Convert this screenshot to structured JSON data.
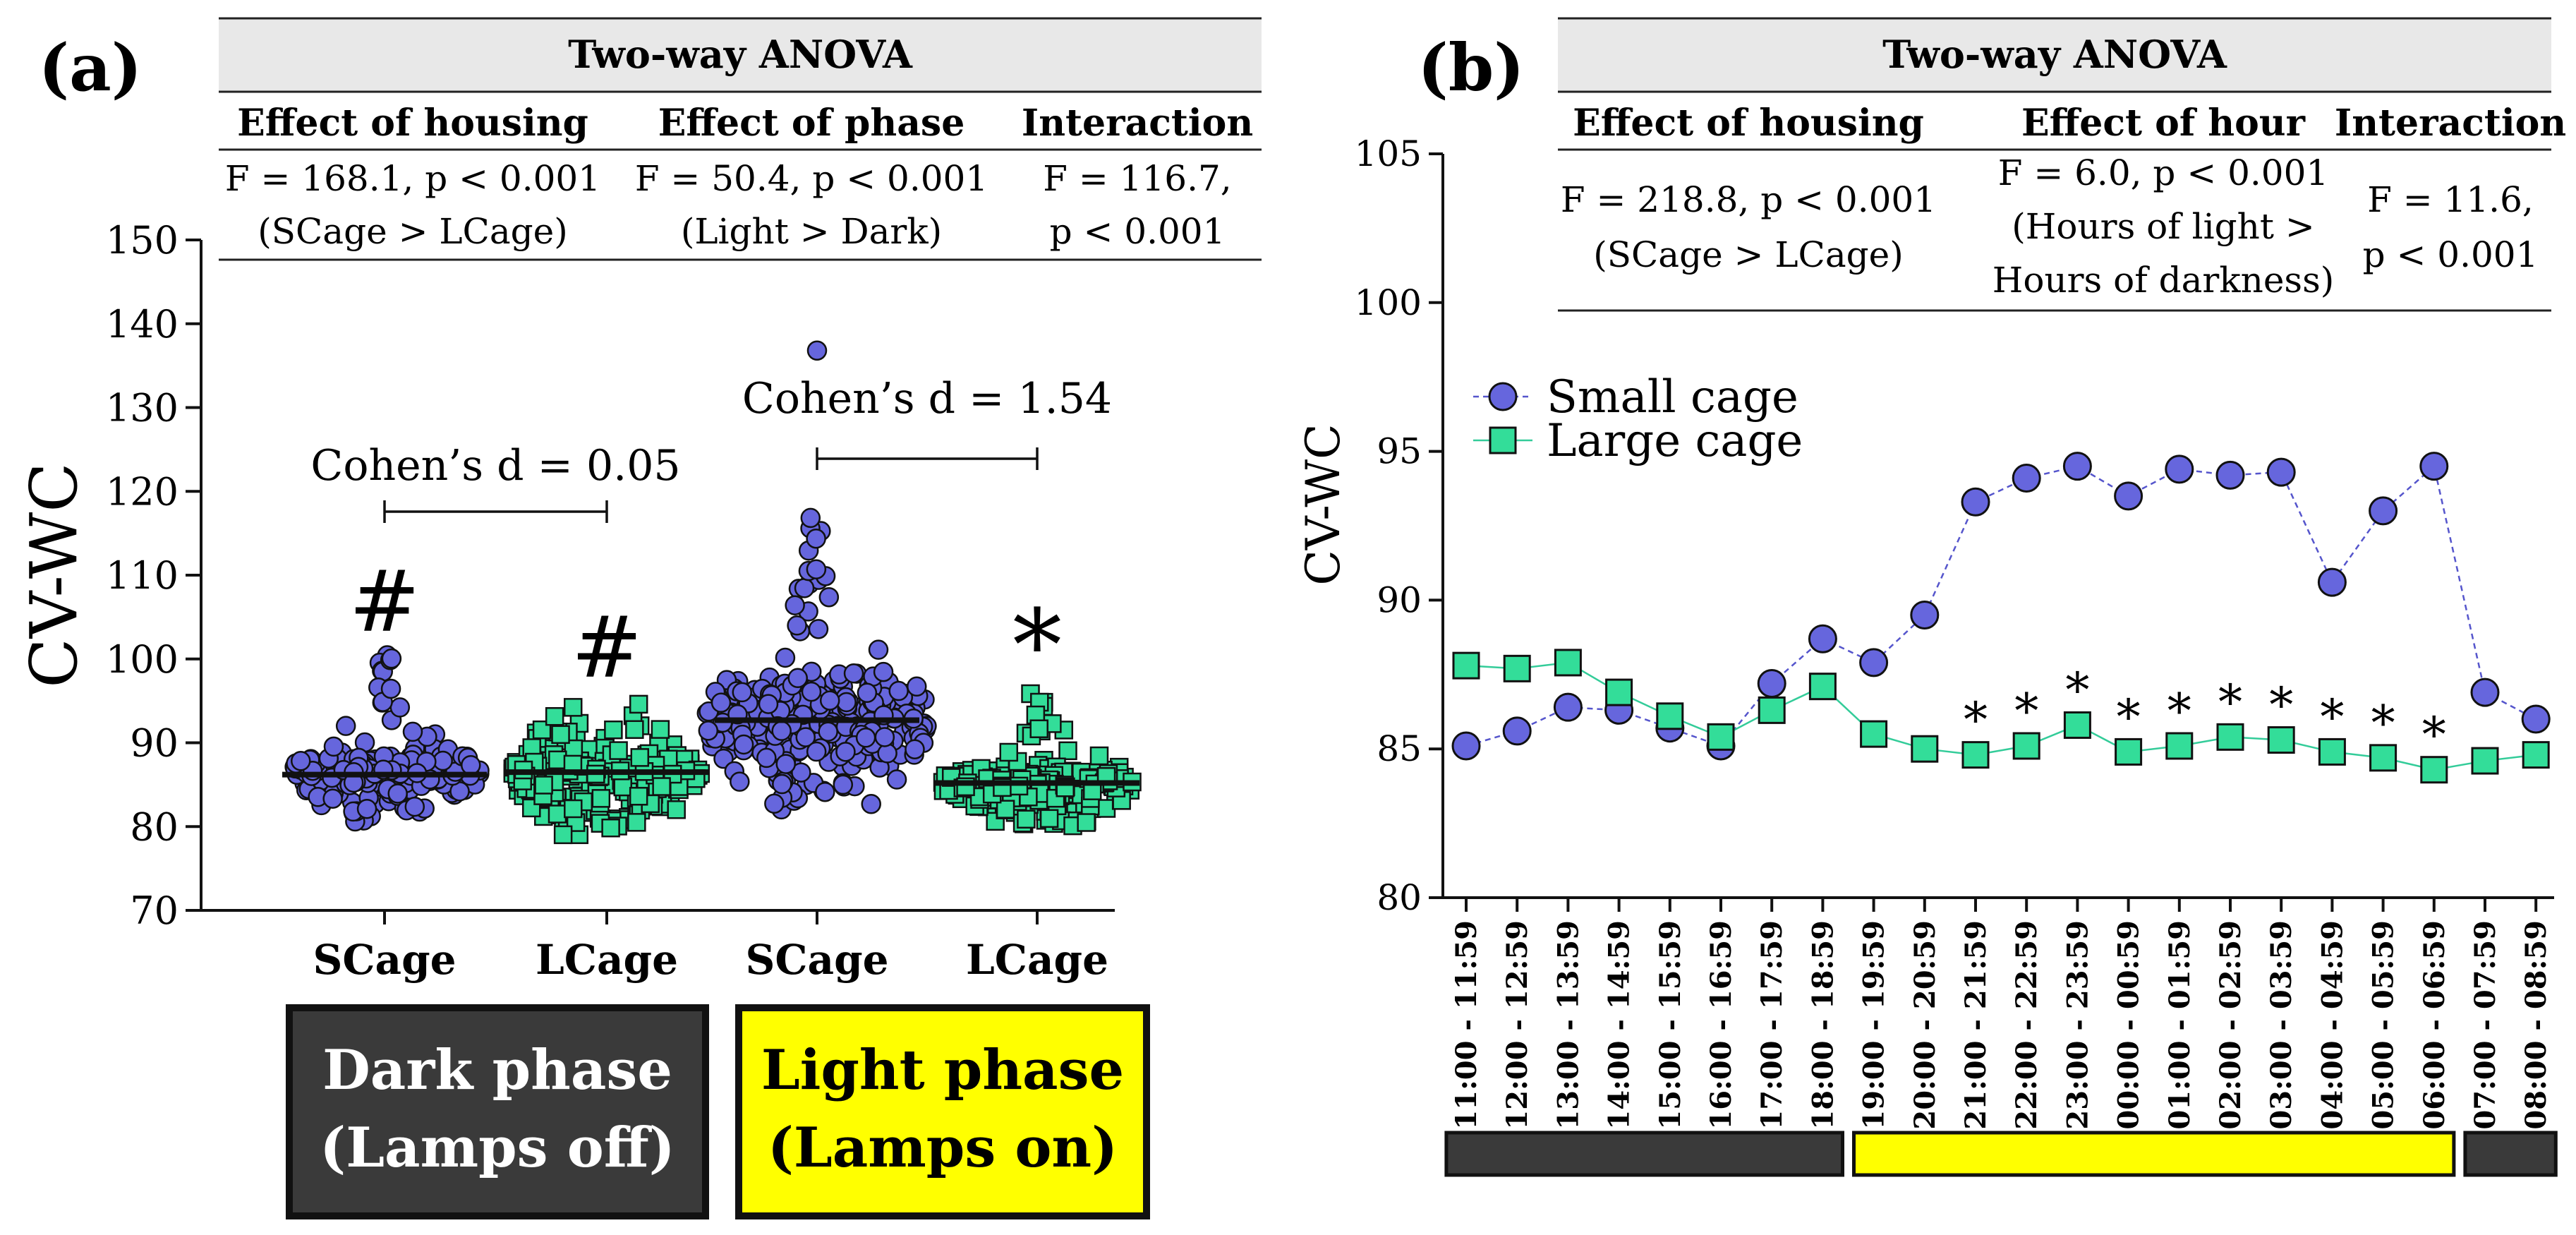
{
  "panels": {
    "a": {
      "label": "(a)",
      "anova": {
        "title": "Two-way ANOVA",
        "columns": [
          {
            "header": "Effect of housing",
            "lines": [
              "F = 168.1, p < 0.001",
              "(SCage > LCage)"
            ]
          },
          {
            "header": "Effect of phase",
            "lines": [
              "F = 50.4, p < 0.001",
              "(Light > Dark)"
            ]
          },
          {
            "header": "Interaction",
            "lines": [
              "F = 116.7,",
              "p < 0.001"
            ]
          }
        ]
      },
      "cohen": [
        {
          "text": "Cohen’s d = 0.05",
          "between": [
            0,
            1
          ]
        },
        {
          "text": "Cohen’s d = 1.54",
          "between": [
            2,
            3
          ]
        }
      ],
      "phases": [
        {
          "label_lines": [
            "Dark phase",
            "(Lamps off)"
          ],
          "color": "#3a3a3a",
          "text_color": "#ffffff",
          "groups": [
            0,
            1
          ]
        },
        {
          "label_lines": [
            "Light phase",
            "(Lamps on)"
          ],
          "color": "#ffff00",
          "text_color": "#000000",
          "groups": [
            2,
            3
          ]
        }
      ]
    },
    "b": {
      "label": "(b)",
      "anova": {
        "title": "Two-way ANOVA",
        "columns": [
          {
            "header": "Effect of housing",
            "lines": [
              "F = 218.8, p < 0.001",
              "(SCage > LCage)"
            ]
          },
          {
            "header": "Effect of hour",
            "lines": [
              "F = 6.0, p < 0.001",
              "(Hours of light >",
              "Hours of darkness)"
            ]
          },
          {
            "header": "Interaction",
            "lines": [
              "F = 11.6,",
              "p < 0.001"
            ]
          }
        ]
      },
      "time_bars": [
        {
          "from": 0,
          "to": 7,
          "color": "#3a3a3a"
        },
        {
          "from": 8,
          "to": 19,
          "color": "#ffff00"
        },
        {
          "from": 20,
          "to": 21,
          "color": "#3a3a3a"
        }
      ]
    }
  },
  "chart_data": [
    {
      "type": "scatter",
      "title": "",
      "xlabel": "",
      "ylabel": "CV-WC",
      "ylim": [
        70,
        150
      ],
      "yticks": [
        70,
        80,
        90,
        100,
        110,
        120,
        130,
        140,
        150
      ],
      "categories": [
        "SCage",
        "LCage",
        "SCage",
        "LCage"
      ],
      "series": [
        {
          "name": "SCage dark",
          "marker": "circle",
          "color": "#6666dd",
          "mean": 86.2,
          "min": 80.5,
          "max": 101,
          "q1": 84.5,
          "median": 86.2,
          "q3": 88.2,
          "n": 220,
          "annotation": "#"
        },
        {
          "name": "LCage dark",
          "marker": "square",
          "color": "#33dd99",
          "mean": 86.5,
          "min": 79,
          "max": 95.5,
          "q1": 83.5,
          "median": 86.2,
          "q3": 89.5,
          "n": 220,
          "annotation": "#"
        },
        {
          "name": "SCage light",
          "marker": "circle",
          "color": "#6666dd",
          "mean": 92.7,
          "min": 82,
          "max": 117.5,
          "q1": 88.5,
          "median": 91.5,
          "q3": 96.5,
          "n": 320,
          "annotation": "",
          "outliers": [
            136.8
          ]
        },
        {
          "name": "LCage light",
          "marker": "square",
          "color": "#33dd99",
          "mean": 85.2,
          "min": 79.8,
          "max": 96,
          "q1": 83.2,
          "median": 85.0,
          "q3": 86.8,
          "n": 240,
          "annotation": "*"
        }
      ]
    },
    {
      "type": "line",
      "title": "",
      "xlabel": "",
      "ylabel": "CV-WC",
      "ylim": [
        80,
        105
      ],
      "yticks": [
        80,
        85,
        90,
        95,
        100,
        105
      ],
      "categories": [
        "11:00 - 11:59",
        "12:00 - 12:59",
        "13:00 - 13:59",
        "14:00 - 14:59",
        "15:00 - 15:59",
        "16:00 - 16:59",
        "17:00 - 17:59",
        "18:00 - 18:59",
        "19:00 - 19:59",
        "20:00 - 20:59",
        "21:00 - 21:59",
        "22:00 - 22:59",
        "23:00 - 23:59",
        "00:00 - 00:59",
        "01:00 - 01:59",
        "02:00 - 02:59",
        "03:00 - 03:59",
        "04:00 - 04:59",
        "05:00 - 05:59",
        "06:00 - 06:59",
        "07:00 - 07:59",
        "08:00 - 08:59"
      ],
      "series": [
        {
          "name": "Small cage",
          "marker": "circle",
          "color": "#6666dd",
          "line_color": "#5555cc",
          "values": [
            85.1,
            85.6,
            86.4,
            86.3,
            85.7,
            85.1,
            87.2,
            88.7,
            87.9,
            89.5,
            93.3,
            94.1,
            94.5,
            93.5,
            94.4,
            94.2,
            94.3,
            90.6,
            93.0,
            94.5,
            86.9,
            86.0
          ]
        },
        {
          "name": "Large cage",
          "marker": "square",
          "color": "#33dd99",
          "line_color": "#33cc99",
          "values": [
            87.8,
            87.7,
            87.9,
            86.9,
            86.1,
            85.4,
            86.3,
            87.1,
            85.5,
            85.0,
            84.8,
            85.1,
            85.8,
            84.9,
            85.1,
            85.4,
            85.3,
            84.9,
            84.7,
            84.3,
            84.6,
            84.8
          ]
        }
      ],
      "significance_marker": "*",
      "significant_indices": [
        10,
        11,
        12,
        13,
        14,
        15,
        16,
        17,
        18,
        19
      ],
      "legend": "top-left"
    }
  ]
}
